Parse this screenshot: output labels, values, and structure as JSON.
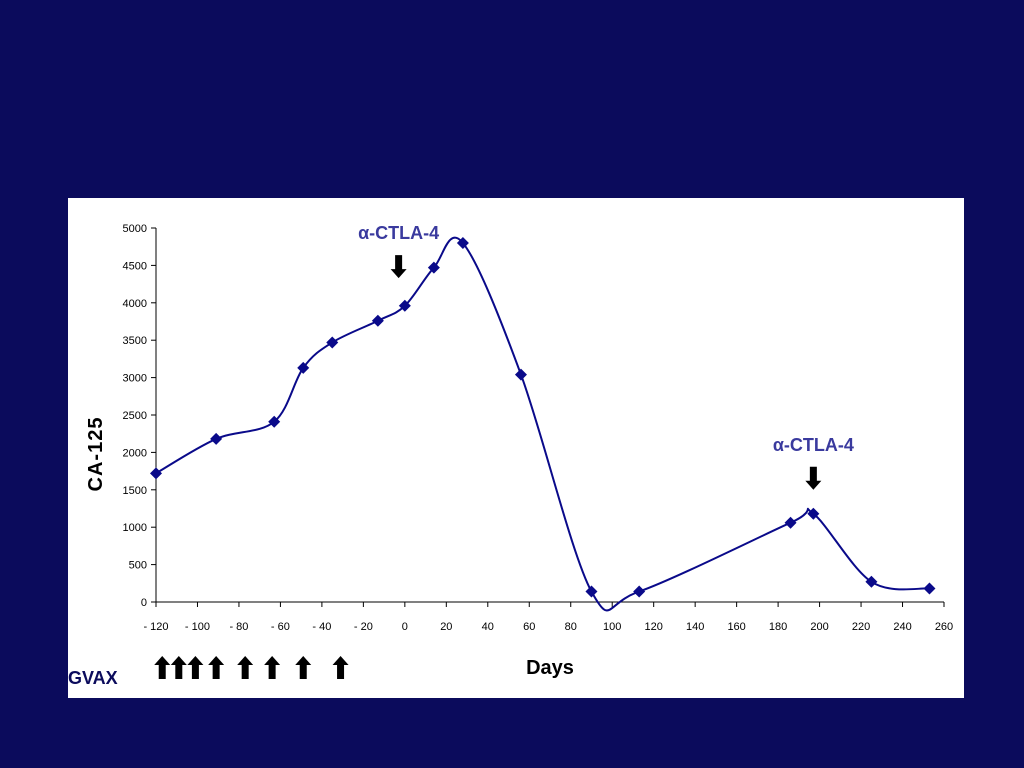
{
  "chart_data": {
    "type": "line",
    "title": "",
    "xlabel": "Days",
    "ylabel": "CA-125",
    "xlim": [
      -120,
      260
    ],
    "ylim": [
      0,
      5000
    ],
    "x_ticks": [
      -120,
      -100,
      -80,
      -60,
      -40,
      -20,
      0,
      20,
      40,
      60,
      80,
      100,
      120,
      140,
      160,
      180,
      200,
      220,
      240,
      260
    ],
    "x_tick_labels": [
      "- 120",
      "- 100",
      "- 80",
      "- 60",
      "- 40",
      "- 20",
      "0",
      "20",
      "40",
      "60",
      "80",
      "100",
      "120",
      "140",
      "160",
      "180",
      "200",
      "220",
      "240",
      "260"
    ],
    "y_ticks": [
      0,
      500,
      1000,
      1500,
      2000,
      2500,
      3000,
      3500,
      4000,
      4500,
      5000
    ],
    "y_tick_labels": [
      "0",
      "500",
      "1000",
      "1500",
      "2000",
      "2500",
      "3000",
      "3500",
      "4000",
      "4500",
      "5000"
    ],
    "grid": false,
    "series_color": "#0a0a8a",
    "series": [
      {
        "x": [
          -120,
          -91,
          -63,
          -49,
          -35,
          -13,
          0,
          14,
          28,
          56,
          90,
          113,
          186,
          197,
          225,
          253
        ],
        "y": [
          1720,
          2180,
          2410,
          3130,
          3470,
          3760,
          3960,
          4470,
          4800,
          3040,
          140,
          140,
          1060,
          1180,
          270,
          180
        ]
      }
    ],
    "annotations": [
      {
        "label": "α-CTLA-4",
        "x": -3,
        "y": 4330,
        "direction": "down"
      },
      {
        "label": "α-CTLA-4",
        "x": 197,
        "y": 1500,
        "direction": "down"
      }
    ],
    "gvax": {
      "label": "GVAX",
      "days": [
        -117,
        -109,
        -101,
        -91,
        -77,
        -64,
        -49,
        -31
      ]
    }
  }
}
